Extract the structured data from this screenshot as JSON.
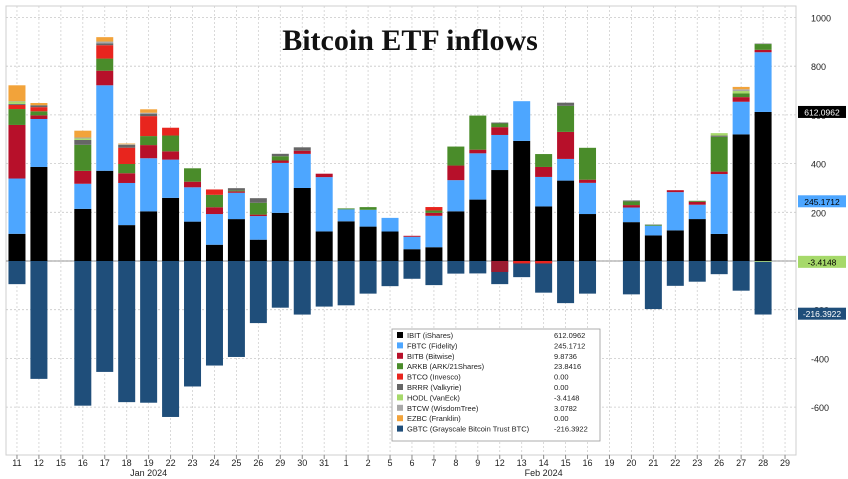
{
  "chart_data": {
    "type": "bar",
    "title": "Bitcoin ETF inflows",
    "stacked": true,
    "grid": true,
    "legend_placement": "bottom-center",
    "ylim": [
      -800,
      1000
    ],
    "yticks": [
      -600,
      -400,
      -200,
      0,
      200,
      400,
      600,
      800,
      1000
    ],
    "ytick_labels": [
      "-600",
      "-400",
      "-200",
      "",
      "200",
      "400",
      "600",
      "800",
      "1000"
    ],
    "month_labels": [
      {
        "label": "Jan 2024",
        "at": "19"
      },
      {
        "label": "Feb 2024",
        "at": "14"
      }
    ],
    "categories": [
      "11",
      "12",
      "15",
      "16",
      "17",
      "18",
      "19",
      "22",
      "23",
      "24",
      "25",
      "26",
      "29",
      "30",
      "31",
      "1",
      "2",
      "5",
      "6",
      "7",
      "8",
      "9",
      "12",
      "13",
      "14",
      "15",
      "16",
      "19",
      "20",
      "21",
      "22",
      "23",
      "26",
      "27",
      "28",
      "29"
    ],
    "series": [
      {
        "name": "IBIT (iShares)",
        "legend_value": "612.0962",
        "color": "#000000",
        "values": [
          111.7,
          386.2,
          null,
          214.2,
          370.6,
          147.4,
          204.0,
          259.3,
          161.7,
          66.8,
          172.1,
          87.5,
          197.8,
          299.9,
          121.5,
          163.0,
          141.3,
          121.1,
          48.5,
          56.6,
          204.0,
          252.2,
          373.6,
          493.3,
          224.2,
          330.2,
          192.9,
          null,
          159.6,
          105.0,
          125.8,
          172.2,
          111.1,
          520.0,
          612.1,
          null
        ]
      },
      {
        "name": "FBTC (Fidelity)",
        "legend_value": "245.1712",
        "color": "#4da6ff",
        "values": [
          227.0,
          197.0,
          null,
          103.0,
          351.0,
          173.0,
          218.0,
          157.0,
          141.0,
          126.0,
          108.0,
          97.0,
          205.0,
          140.0,
          223.0,
          49.0,
          69.0,
          56.0,
          51.0,
          129.0,
          128.0,
          190.0,
          144.0,
          163.0,
          121.0,
          89.0,
          128.0,
          null,
          60.0,
          40.0,
          157.0,
          59.0,
          246.0,
          134.0,
          245.2,
          null
        ]
      },
      {
        "name": "BITB (Bitwise)",
        "legend_value": "9.8736",
        "color": "#b7102a",
        "values": [
          220.0,
          15.0,
          null,
          53.0,
          60.0,
          40.0,
          54.0,
          34.0,
          23.0,
          28.0,
          6.0,
          6.0,
          10.0,
          13.0,
          14.0,
          0,
          0,
          0,
          4.0,
          12.0,
          60.0,
          15.0,
          32.0,
          0,
          41.0,
          111.0,
          13.0,
          null,
          10.0,
          0,
          8.0,
          12.0,
          10.0,
          19.0,
          9.9,
          null
        ]
      },
      {
        "name": "ARKB (ARK/21Shares)",
        "legend_value": "23.8416",
        "color": "#4a8c2a",
        "values": [
          65.3,
          16.6,
          null,
          107.0,
          49.7,
          38.0,
          37.0,
          65.0,
          55.0,
          51.0,
          4.0,
          48.5,
          17.4,
          0,
          0,
          4.0,
          11.0,
          0,
          0,
          10.0,
          78.0,
          140.0,
          15.0,
          0,
          53.0,
          107.0,
          131.0,
          null,
          15.0,
          4.0,
          0,
          4.0,
          143.0,
          15.0,
          23.8,
          null
        ]
      },
      {
        "name": "BTCO (Invesco)",
        "legend_value": "0.00",
        "color": "#e8251e",
        "values": [
          17.0,
          17.0,
          null,
          0,
          55.0,
          67.0,
          82.0,
          32.0,
          0,
          22.0,
          0,
          0,
          0,
          0,
          0,
          0,
          0,
          0,
          0,
          14.0,
          0,
          0,
          0,
          0,
          0,
          0,
          0,
          null,
          0,
          0,
          0,
          0,
          0,
          0,
          0,
          null
        ]
      },
      {
        "name": "BRRR (Valkyrie)",
        "legend_value": "0.00",
        "color": "#666666",
        "values": [
          4.0,
          8.0,
          null,
          20.0,
          8.0,
          11.0,
          10.0,
          0,
          0,
          0,
          9.0,
          19.0,
          10.0,
          14.0,
          0,
          0,
          0,
          0,
          0,
          0,
          0,
          0,
          4.0,
          0,
          0,
          13.0,
          0,
          null,
          4.0,
          0,
          0,
          0,
          5.0,
          0,
          0,
          null
        ]
      },
      {
        "name": "HODL (VanEck)",
        "legend_value": "-3.4148",
        "color": "#a6d96a",
        "values": [
          10.6,
          0,
          null,
          6.0,
          0,
          0,
          0,
          0,
          0,
          0,
          0,
          0,
          0,
          0,
          0,
          0,
          0,
          0,
          0,
          0,
          0,
          0,
          0,
          0,
          0,
          0,
          0,
          null,
          0,
          0,
          0,
          0,
          10.0,
          10.0,
          -3.4,
          null
        ]
      },
      {
        "name": "BTCW (WisdomTree)",
        "legend_value": "3.0782",
        "color": "#a9a9a9",
        "values": [
          1.0,
          0,
          null,
          4.0,
          7.0,
          3.0,
          4.0,
          0,
          0,
          0,
          0,
          0,
          0,
          0,
          0,
          0,
          0,
          0,
          0,
          0,
          0,
          0,
          0,
          0,
          0,
          0,
          0,
          null,
          0,
          2.0,
          0,
          0,
          0,
          7.0,
          3.1,
          null
        ]
      },
      {
        "name": "EZBC (Franklin)",
        "legend_value": "0.00",
        "color": "#f2a33a",
        "values": [
          65.0,
          9.0,
          null,
          28.0,
          18.0,
          3.0,
          14.0,
          0,
          0,
          0,
          0,
          0,
          0,
          0,
          0,
          0,
          0,
          0,
          0,
          0,
          0,
          0,
          0,
          0,
          0,
          0,
          0,
          null,
          0,
          0,
          0,
          0,
          0,
          10.0,
          0,
          null
        ]
      },
      {
        "name": "GBTC (Grayscale Bitcoin Trust BTC)",
        "legend_value": "-216.3922",
        "color": "#1f4e7a",
        "values": [
          -95.1,
          -484.1,
          null,
          -594.1,
          -455.5,
          -579.6,
          -582.0,
          -640.5,
          -515.3,
          -429.3,
          -394.1,
          -255.0,
          -191.7,
          -220.0,
          -187.2,
          -182.0,
          -134.0,
          -103.3,
          -73.0,
          -99.0,
          -51.8,
          -51.0,
          -95.0,
          -66.3,
          -130.0,
          -173.0,
          -134.0,
          null,
          -137.0,
          -197.4,
          -102.0,
          -85.0,
          -54.1,
          -121.9,
          -216.4,
          null
        ]
      }
    ],
    "right_labels": [
      {
        "value": 245.1712,
        "text": "245.1712"
      },
      {
        "value": 612.0962,
        "text": "612.0962"
      },
      {
        "value": -3.4148,
        "text": "-3.4148"
      },
      {
        "value": -216.3922,
        "text": "-216.3922"
      }
    ],
    "overflow_bars": [
      {
        "category": "12",
        "value": -180.0,
        "color": "#9b1b30"
      },
      {
        "category": "13",
        "value": -40.0,
        "color": "#e8251e"
      },
      {
        "category": "14",
        "value": -40.0,
        "color": "#e8251e"
      }
    ]
  }
}
